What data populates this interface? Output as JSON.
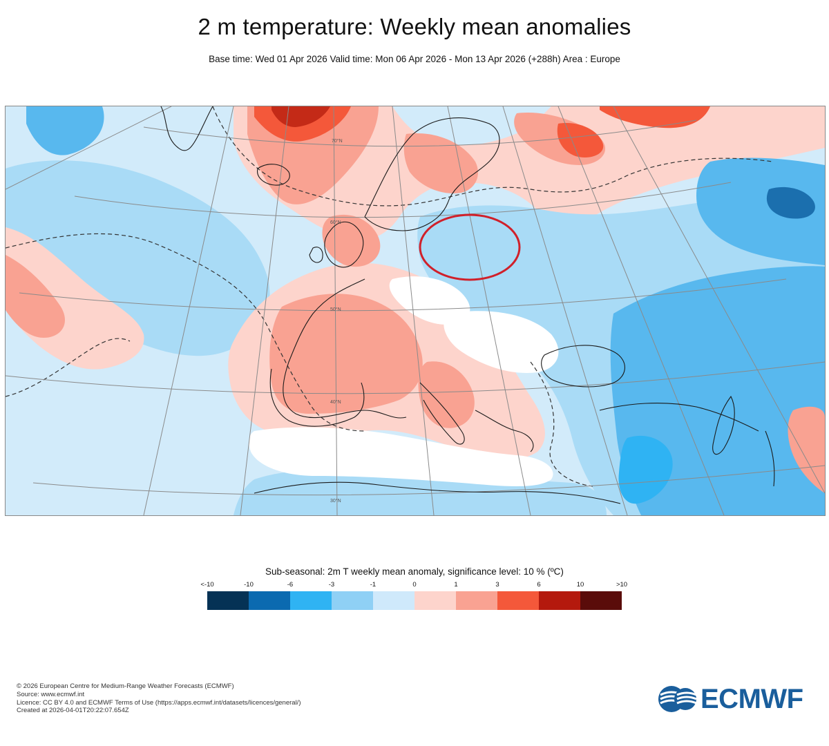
{
  "header": {
    "title": "2 m temperature: Weekly mean anomalies",
    "subtitle": "Base time: Wed 01 Apr 2026 Valid time: Mon 06 Apr 2026 - Mon 13 Apr 2026 (+288h) Area : Europe"
  },
  "map": {
    "region": "Europe",
    "annotation": "red-ellipse-highlight",
    "colors": {
      "ocean_base": "#d2ebfa",
      "land_outline": "#1a1a1a",
      "graticule": "#8a8a8a",
      "annotation": "#d0202a"
    },
    "latitude_labels": [
      "70°N",
      "60°N",
      "50°N",
      "40°N",
      "30°N"
    ]
  },
  "legend": {
    "title": "Sub-seasonal: 2m T weekly mean anomaly, significance level: 10 % (ºC)",
    "ticks": [
      "<-10",
      "-10",
      "-6",
      "-3",
      "-1",
      "0",
      "1",
      "3",
      "6",
      "10",
      ">10"
    ],
    "colors": [
      "#053255",
      "#0b6ab0",
      "#2fb3f3",
      "#8fd0f5",
      "#cfe9fb",
      "#fdd4cc",
      "#f9a292",
      "#f4583a",
      "#b4190d",
      "#5a0c0a"
    ]
  },
  "footer": {
    "copyright": "© 2026 European Centre for Medium-Range Weather Forecasts (ECMWF)",
    "source": "Source: www.ecmwf.int",
    "licence": "Licence: CC BY 4.0 and ECMWF Terms of Use (https://apps.ecmwf.int/datasets/licences/general/)",
    "created": "Created at 2026-04-01T20:22:07.654Z",
    "logo_text": "ECMWF",
    "logo_color": "#1a5e9c"
  }
}
